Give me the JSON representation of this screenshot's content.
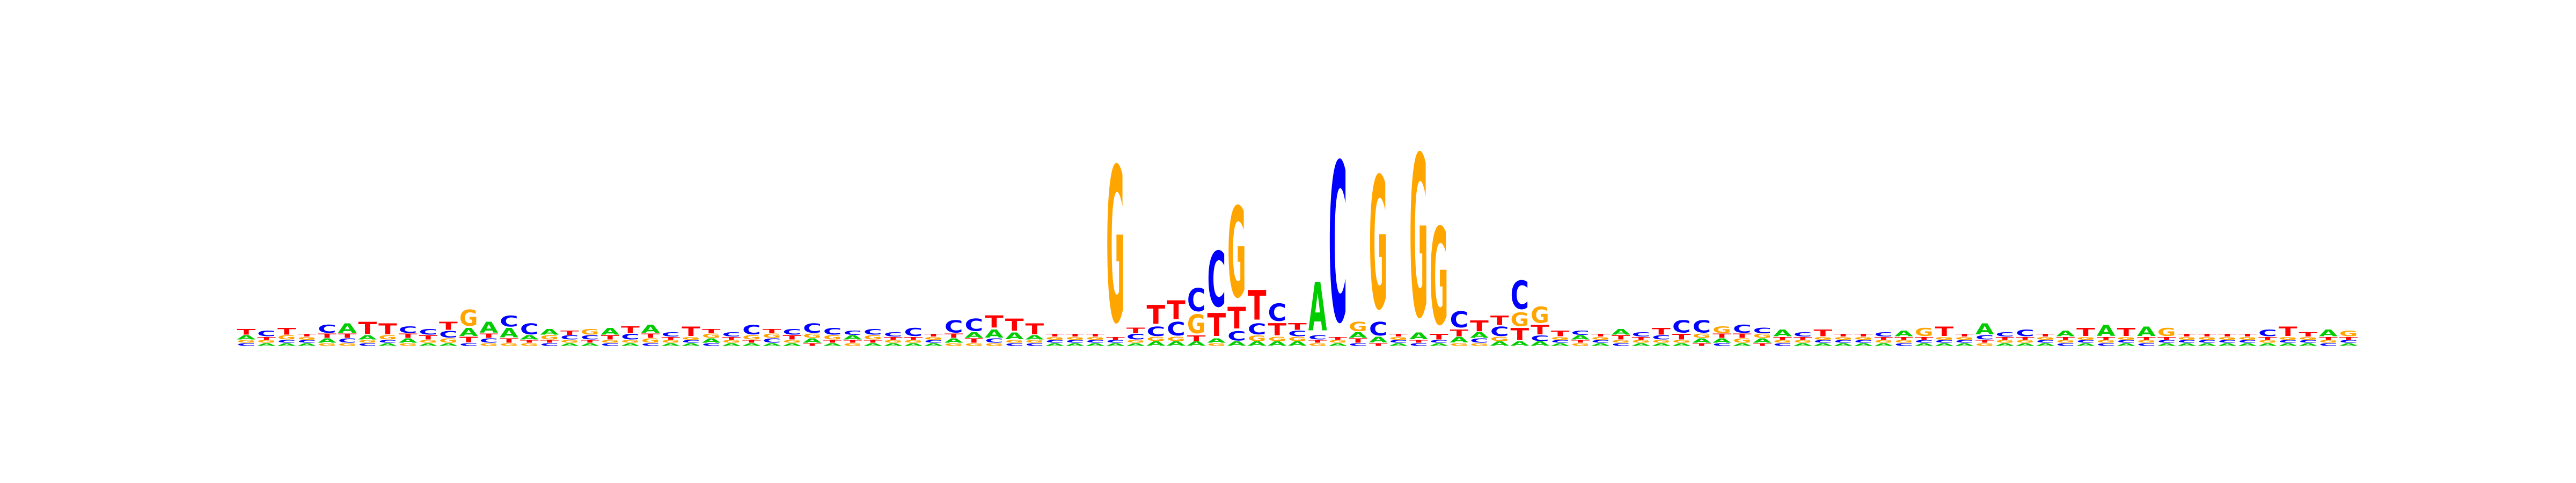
{
  "colors": {
    "A": "#00cc00",
    "C": "#0000ff",
    "G": "#ffa500",
    "T": "#ff0000",
    "background": "#ffffff"
  },
  "motif": {
    "alphabet": [
      "A",
      "C",
      "G",
      "T"
    ],
    "max_information_bits": 2.0,
    "positions": [
      {
        "A": 0.03,
        "C": 0.02,
        "G": 0.02,
        "T": 0.04
      },
      {
        "A": 0.02,
        "C": 0.04,
        "G": 0.02,
        "T": 0.02
      },
      {
        "A": 0.02,
        "C": 0.02,
        "G": 0.03,
        "T": 0.05
      },
      {
        "A": 0.02,
        "C": 0.02,
        "G": 0.02,
        "T": 0.02
      },
      {
        "A": 0.03,
        "C": 0.06,
        "G": 0.02,
        "T": 0.03
      },
      {
        "A": 0.07,
        "C": 0.03,
        "G": 0.02,
        "T": 0.03
      },
      {
        "A": 0.03,
        "C": 0.02,
        "G": 0.02,
        "T": 0.09
      },
      {
        "A": 0.02,
        "C": 0.02,
        "G": 0.03,
        "T": 0.08
      },
      {
        "A": 0.03,
        "C": 0.05,
        "G": 0.02,
        "T": 0.03
      },
      {
        "A": 0.02,
        "C": 0.04,
        "G": 0.02,
        "T": 0.03
      },
      {
        "A": 0.02,
        "C": 0.05,
        "G": 0.03,
        "T": 0.06
      },
      {
        "A": 0.06,
        "C": 0.02,
        "G": 0.12,
        "T": 0.04
      },
      {
        "A": 0.08,
        "C": 0.03,
        "G": 0.02,
        "T": 0.03
      },
      {
        "A": 0.07,
        "C": 0.08,
        "G": 0.02,
        "T": 0.03
      },
      {
        "A": 0.03,
        "C": 0.08,
        "G": 0.02,
        "T": 0.02
      },
      {
        "A": 0.04,
        "C": 0.02,
        "G": 0.03,
        "T": 0.02
      },
      {
        "A": 0.02,
        "C": 0.03,
        "G": 0.02,
        "T": 0.03
      },
      {
        "A": 0.02,
        "C": 0.03,
        "G": 0.04,
        "T": 0.02
      },
      {
        "A": 0.05,
        "C": 0.02,
        "G": 0.02,
        "T": 0.03
      },
      {
        "A": 0.02,
        "C": 0.04,
        "G": 0.02,
        "T": 0.05
      },
      {
        "A": 0.06,
        "C": 0.02,
        "G": 0.03,
        "T": 0.03
      },
      {
        "A": 0.02,
        "C": 0.03,
        "G": 0.02,
        "T": 0.02
      },
      {
        "A": 0.02,
        "C": 0.02,
        "G": 0.02,
        "T": 0.07
      },
      {
        "A": 0.03,
        "C": 0.02,
        "G": 0.03,
        "T": 0.03
      },
      {
        "A": 0.02,
        "C": 0.03,
        "G": 0.02,
        "T": 0.02
      },
      {
        "A": 0.02,
        "C": 0.07,
        "G": 0.03,
        "T": 0.02
      },
      {
        "A": 0.02,
        "C": 0.03,
        "G": 0.03,
        "T": 0.03
      },
      {
        "A": 0.02,
        "C": 0.04,
        "G": 0.02,
        "T": 0.03
      },
      {
        "A": 0.03,
        "C": 0.07,
        "G": 0.03,
        "T": 0.02
      },
      {
        "A": 0.02,
        "C": 0.05,
        "G": 0.03,
        "T": 0.02
      },
      {
        "A": 0.03,
        "C": 0.03,
        "G": 0.02,
        "T": 0.02
      },
      {
        "A": 0.02,
        "C": 0.04,
        "G": 0.03,
        "T": 0.02
      },
      {
        "A": 0.02,
        "C": 0.03,
        "G": 0.02,
        "T": 0.02
      },
      {
        "A": 0.02,
        "C": 0.06,
        "G": 0.02,
        "T": 0.02
      },
      {
        "A": 0.02,
        "C": 0.02,
        "G": 0.02,
        "T": 0.02
      },
      {
        "A": 0.03,
        "C": 0.09,
        "G": 0.02,
        "T": 0.03
      },
      {
        "A": 0.04,
        "C": 0.09,
        "G": 0.02,
        "T": 0.03
      },
      {
        "A": 0.06,
        "C": 0.03,
        "G": 0.02,
        "T": 0.09
      },
      {
        "A": 0.05,
        "C": 0.02,
        "G": 0.02,
        "T": 0.09
      },
      {
        "A": 0.03,
        "C": 0.02,
        "G": 0.02,
        "T": 0.08
      },
      {
        "A": 0.02,
        "C": 0.02,
        "G": 0.02,
        "T": 0.02
      },
      {
        "A": 0.02,
        "C": 0.02,
        "G": 0.02,
        "T": 0.02
      },
      {
        "A": 0.02,
        "C": 0.02,
        "G": 0.02,
        "T": 0.02
      },
      {
        "A": 0.02,
        "C": 0.02,
        "G": 1.15,
        "T": 0.02
      },
      {
        "A": 0.02,
        "C": 0.04,
        "G": 0.02,
        "T": 0.04
      },
      {
        "A": 0.03,
        "C": 0.07,
        "G": 0.03,
        "T": 0.14
      },
      {
        "A": 0.03,
        "C": 0.1,
        "G": 0.03,
        "T": 0.14
      },
      {
        "A": 0.03,
        "C": 0.17,
        "G": 0.14,
        "T": 0.04
      },
      {
        "A": 0.03,
        "C": 0.41,
        "G": 0.02,
        "T": 0.17
      },
      {
        "A": 0.03,
        "C": 0.07,
        "G": 0.67,
        "T": 0.16
      },
      {
        "A": 0.03,
        "C": 0.08,
        "G": 0.04,
        "T": 0.22
      },
      {
        "A": 0.03,
        "C": 0.13,
        "G": 0.03,
        "T": 0.09
      },
      {
        "A": 0.03,
        "C": 0.04,
        "G": 0.03,
        "T": 0.05
      },
      {
        "A": 0.36,
        "C": 0.03,
        "G": 0.02,
        "T": 0.02
      },
      {
        "A": 0.02,
        "C": 1.18,
        "G": 0.02,
        "T": 0.02
      },
      {
        "A": 0.04,
        "C": 0.02,
        "G": 0.07,
        "T": 0.03
      },
      {
        "A": 0.04,
        "C": 0.1,
        "G": 0.98,
        "T": 0.02
      },
      {
        "A": 0.02,
        "C": 0.02,
        "G": 0.02,
        "T": 0.02
      },
      {
        "A": 0.05,
        "C": 0.02,
        "G": 1.2,
        "T": 0.02
      },
      {
        "A": 0.02,
        "C": 0.02,
        "G": 0.72,
        "T": 0.04
      },
      {
        "A": 0.04,
        "C": 0.12,
        "G": 0.02,
        "T": 0.05
      },
      {
        "A": 0.04,
        "C": 0.03,
        "G": 0.02,
        "T": 0.08
      },
      {
        "A": 0.03,
        "C": 0.07,
        "G": 0.03,
        "T": 0.07
      },
      {
        "A": 0.03,
        "C": 0.21,
        "G": 0.1,
        "T": 0.09
      },
      {
        "A": 0.03,
        "C": 0.04,
        "G": 0.12,
        "T": 0.07
      },
      {
        "A": 0.02,
        "C": 0.02,
        "G": 0.02,
        "T": 0.04
      },
      {
        "A": 0.03,
        "C": 0.03,
        "G": 0.02,
        "T": 0.02
      },
      {
        "A": 0.02,
        "C": 0.02,
        "G": 0.02,
        "T": 0.02
      },
      {
        "A": 0.04,
        "C": 0.02,
        "G": 0.02,
        "T": 0.03
      },
      {
        "A": 0.02,
        "C": 0.03,
        "G": 0.02,
        "T": 0.02
      },
      {
        "A": 0.02,
        "C": 0.03,
        "G": 0.02,
        "T": 0.05
      },
      {
        "A": 0.02,
        "C": 0.09,
        "G": 0.02,
        "T": 0.04
      },
      {
        "A": 0.03,
        "C": 0.09,
        "G": 0.03,
        "T": 0.02
      },
      {
        "A": 0.03,
        "C": 0.02,
        "G": 0.05,
        "T": 0.03
      },
      {
        "A": 0.02,
        "C": 0.06,
        "G": 0.03,
        "T": 0.03
      },
      {
        "A": 0.03,
        "C": 0.04,
        "G": 0.03,
        "T": 0.02
      },
      {
        "A": 0.05,
        "C": 0.02,
        "G": 0.02,
        "T": 0.02
      },
      {
        "A": 0.02,
        "C": 0.03,
        "G": 0.02,
        "T": 0.02
      },
      {
        "A": 0.02,
        "C": 0.02,
        "G": 0.02,
        "T": 0.05
      },
      {
        "A": 0.02,
        "C": 0.02,
        "G": 0.02,
        "T": 0.02
      },
      {
        "A": 0.02,
        "C": 0.02,
        "G": 0.02,
        "T": 0.02
      },
      {
        "A": 0.02,
        "C": 0.03,
        "G": 0.02,
        "T": 0.02
      },
      {
        "A": 0.04,
        "C": 0.02,
        "G": 0.02,
        "T": 0.02
      },
      {
        "A": 0.02,
        "C": 0.02,
        "G": 0.06,
        "T": 0.02
      },
      {
        "A": 0.02,
        "C": 0.02,
        "G": 0.02,
        "T": 0.07
      },
      {
        "A": 0.02,
        "C": 0.02,
        "G": 0.02,
        "T": 0.02
      },
      {
        "A": 0.08,
        "C": 0.03,
        "G": 0.02,
        "T": 0.02
      },
      {
        "A": 0.02,
        "C": 0.03,
        "G": 0.02,
        "T": 0.02
      },
      {
        "A": 0.02,
        "C": 0.05,
        "G": 0.02,
        "T": 0.02
      },
      {
        "A": 0.02,
        "C": 0.02,
        "G": 0.02,
        "T": 0.02
      },
      {
        "A": 0.04,
        "C": 0.02,
        "G": 0.02,
        "T": 0.02
      },
      {
        "A": 0.02,
        "C": 0.02,
        "G": 0.02,
        "T": 0.06
      },
      {
        "A": 0.08,
        "C": 0.02,
        "G": 0.02,
        "T": 0.02
      },
      {
        "A": 0.02,
        "C": 0.02,
        "G": 0.02,
        "T": 0.06
      },
      {
        "A": 0.07,
        "C": 0.02,
        "G": 0.02,
        "T": 0.02
      },
      {
        "A": 0.02,
        "C": 0.02,
        "G": 0.06,
        "T": 0.02
      },
      {
        "A": 0.02,
        "C": 0.02,
        "G": 0.02,
        "T": 0.02
      },
      {
        "A": 0.02,
        "C": 0.02,
        "G": 0.02,
        "T": 0.02
      },
      {
        "A": 0.02,
        "C": 0.02,
        "G": 0.02,
        "T": 0.02
      },
      {
        "A": 0.02,
        "C": 0.02,
        "G": 0.02,
        "T": 0.02
      },
      {
        "A": 0.02,
        "C": 0.05,
        "G": 0.02,
        "T": 0.02
      },
      {
        "A": 0.02,
        "C": 0.02,
        "G": 0.02,
        "T": 0.07
      },
      {
        "A": 0.02,
        "C": 0.02,
        "G": 0.02,
        "T": 0.03
      },
      {
        "A": 0.05,
        "C": 0.02,
        "G": 0.02,
        "T": 0.02
      },
      {
        "A": 0.02,
        "C": 0.02,
        "G": 0.04,
        "T": 0.02
      }
    ]
  }
}
